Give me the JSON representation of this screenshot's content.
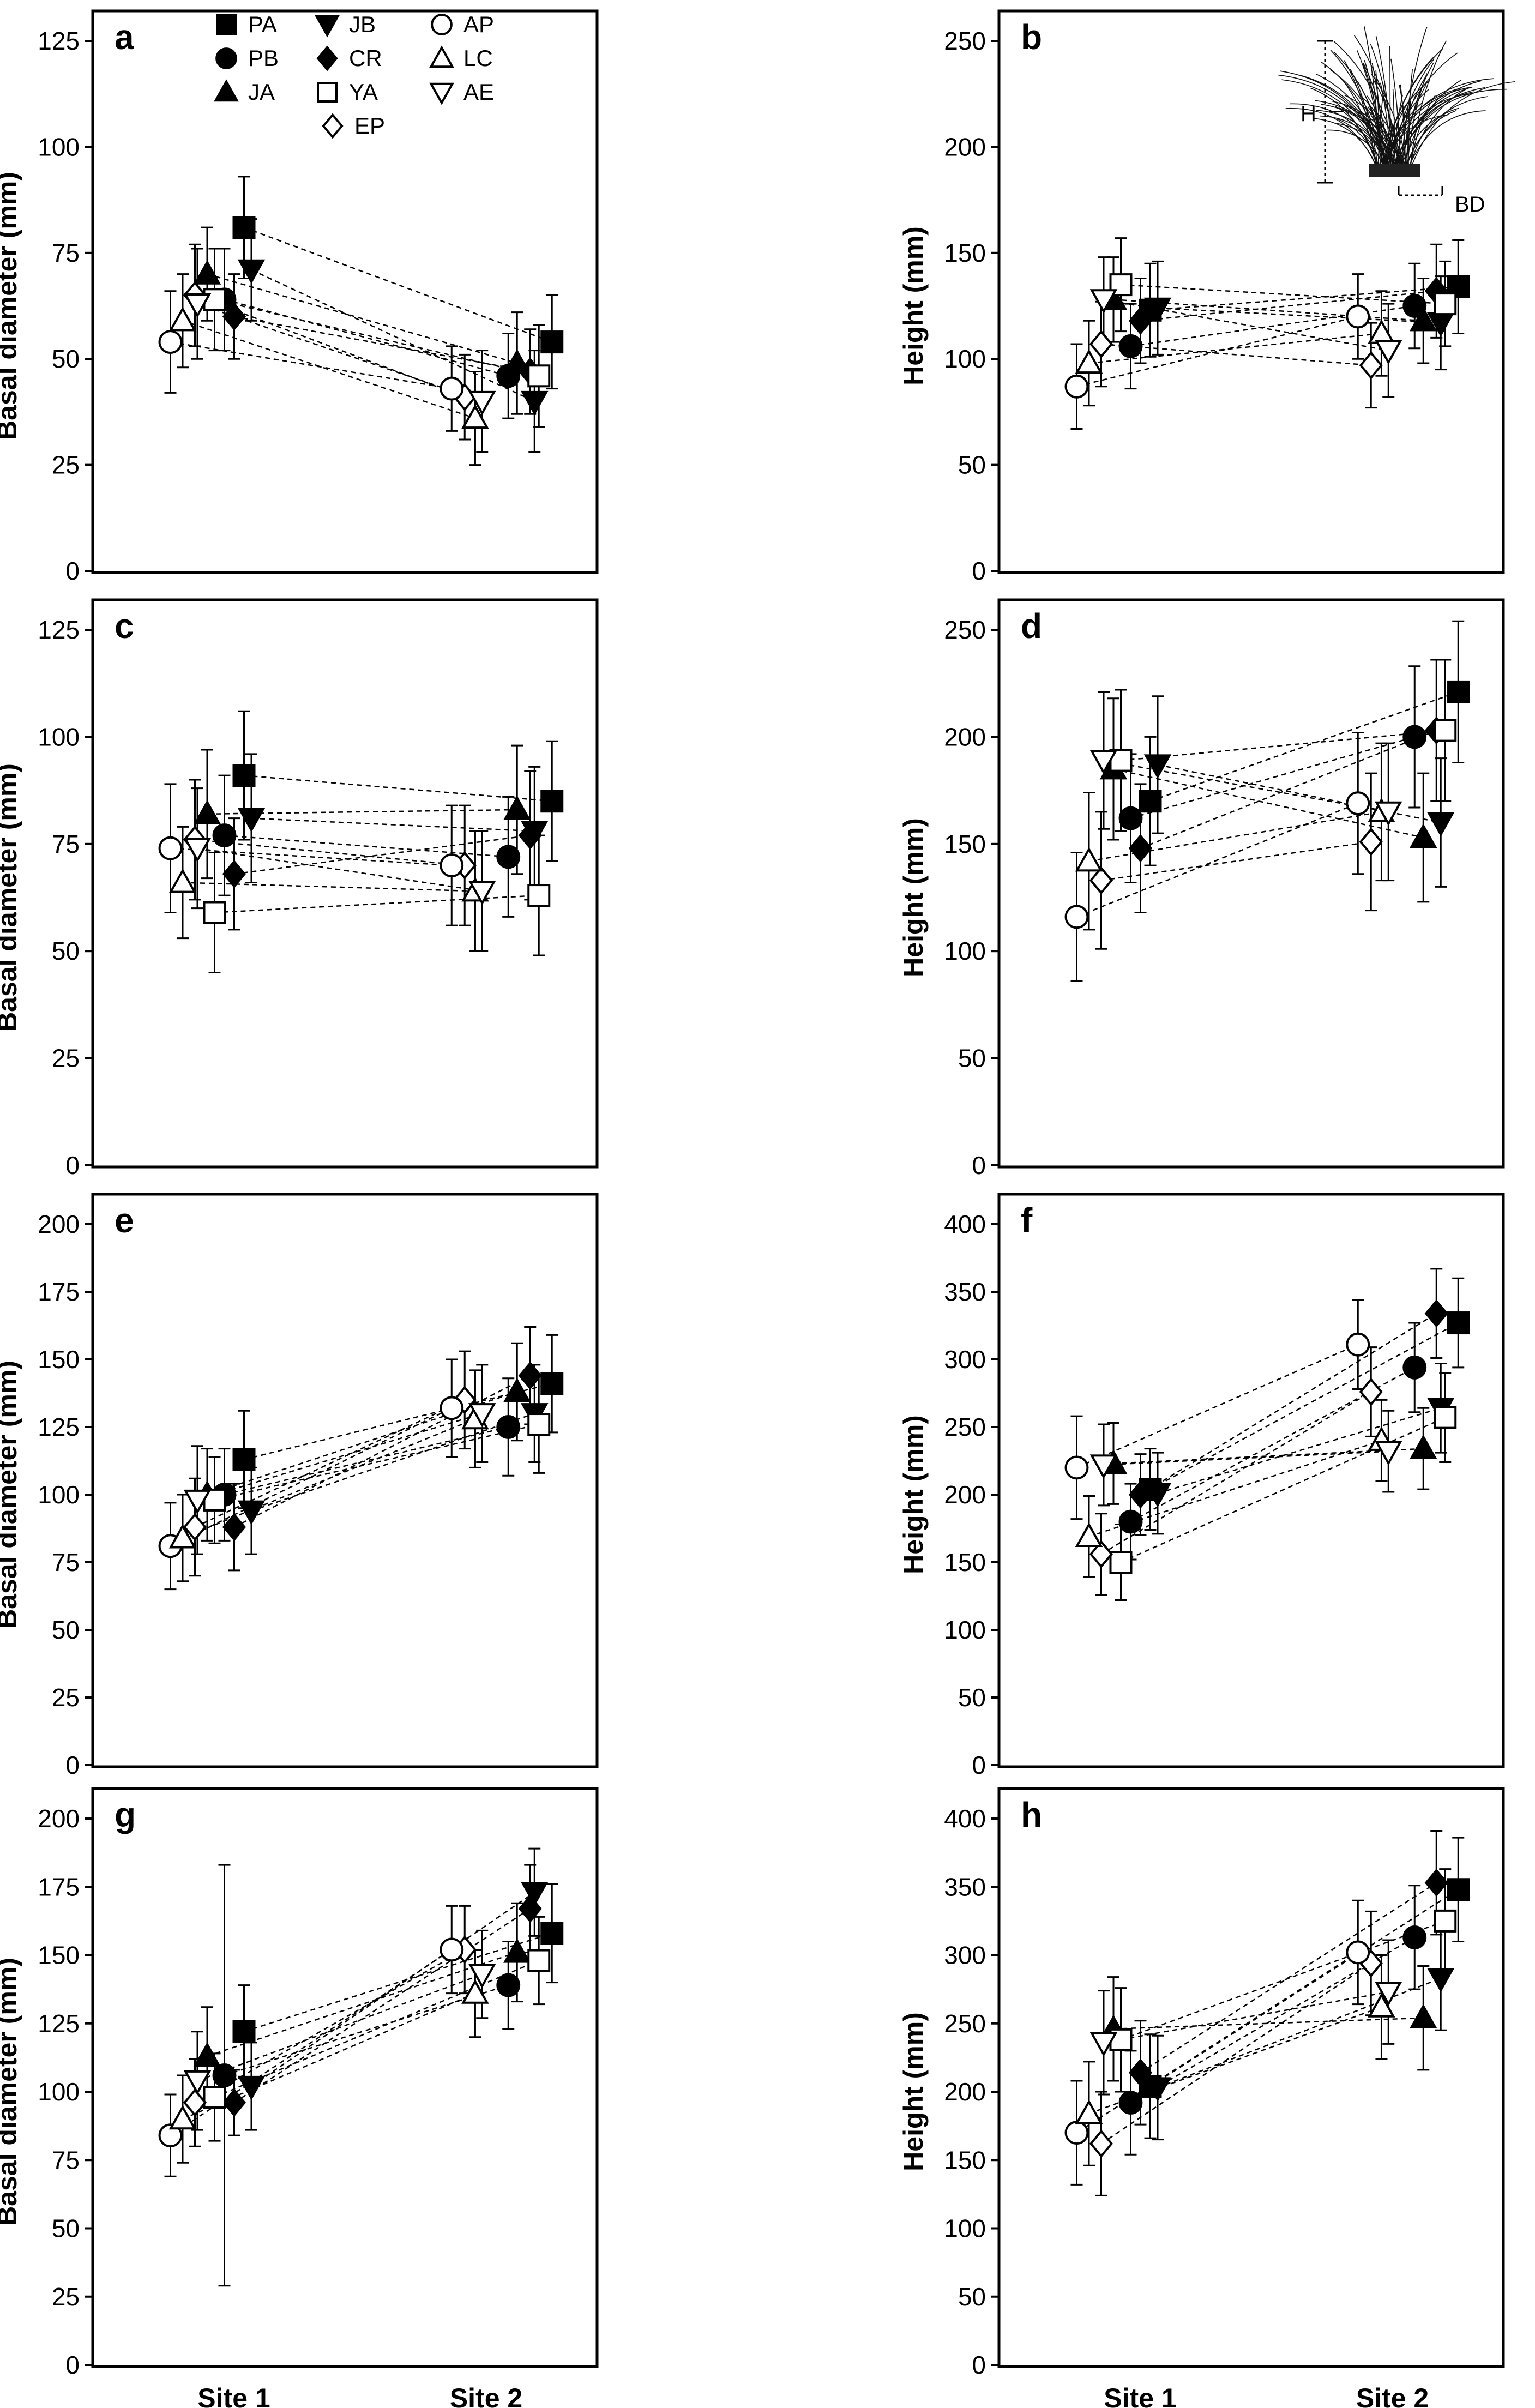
{
  "figure": {
    "categories": [
      "Site 1",
      "Site 2"
    ],
    "legend": {
      "columns": [
        [
          "PA",
          "PB",
          "JA"
        ],
        [
          "JB",
          "CR",
          "YA",
          "EP"
        ],
        [
          "AP",
          "LC",
          "AE"
        ]
      ]
    },
    "inset": {
      "height_label": "H",
      "base_label": "BD"
    }
  },
  "chart_data": [
    {
      "id": "a",
      "type": "scatter",
      "ylabel": "Basal diameter (mm)",
      "ylim": [
        0,
        125
      ],
      "yticks": [
        0,
        25,
        50,
        75,
        100,
        125
      ],
      "categories": [
        "Site 1",
        "Site 2"
      ],
      "series": [
        {
          "name": "PA",
          "values": [
            81,
            54
          ],
          "err": [
            12,
            11
          ]
        },
        {
          "name": "PB",
          "values": [
            64,
            46
          ],
          "err": [
            12,
            10
          ]
        },
        {
          "name": "JA",
          "values": [
            70,
            49
          ],
          "err": [
            11,
            12
          ]
        },
        {
          "name": "JB",
          "values": [
            71,
            40
          ],
          "err": [
            12,
            12
          ]
        },
        {
          "name": "CR",
          "values": [
            60,
            47
          ],
          "err": [
            10,
            10
          ]
        },
        {
          "name": "YA",
          "values": [
            64,
            46
          ],
          "err": [
            12,
            12
          ]
        },
        {
          "name": "EP",
          "values": [
            65,
            41
          ],
          "err": [
            12,
            10
          ]
        },
        {
          "name": "AP",
          "values": [
            54,
            43
          ],
          "err": [
            12,
            10
          ]
        },
        {
          "name": "LC",
          "values": [
            59,
            36
          ],
          "err": [
            11,
            11
          ]
        },
        {
          "name": "AE",
          "values": [
            63,
            40
          ],
          "err": [
            13,
            12
          ]
        }
      ]
    },
    {
      "id": "b",
      "type": "scatter",
      "ylabel": "Height (mm)",
      "ylim": [
        0,
        250
      ],
      "yticks": [
        0,
        50,
        100,
        150,
        200,
        250
      ],
      "categories": [
        "Site 1",
        "Site 2"
      ],
      "series": [
        {
          "name": "PA",
          "values": [
            123,
            134
          ],
          "err": [
            22,
            22
          ]
        },
        {
          "name": "PB",
          "values": [
            106,
            125
          ],
          "err": [
            20,
            20
          ]
        },
        {
          "name": "JA",
          "values": [
            128,
            118
          ],
          "err": [
            20,
            20
          ]
        },
        {
          "name": "JB",
          "values": [
            124,
            117
          ],
          "err": [
            22,
            22
          ]
        },
        {
          "name": "CR",
          "values": [
            118,
            132
          ],
          "err": [
            20,
            22
          ]
        },
        {
          "name": "YA",
          "values": [
            135,
            126
          ],
          "err": [
            22,
            20
          ]
        },
        {
          "name": "EP",
          "values": [
            107,
            97
          ],
          "err": [
            20,
            20
          ]
        },
        {
          "name": "AP",
          "values": [
            87,
            120
          ],
          "err": [
            20,
            20
          ]
        },
        {
          "name": "LC",
          "values": [
            98,
            112
          ],
          "err": [
            20,
            20
          ]
        },
        {
          "name": "AE",
          "values": [
            128,
            104
          ],
          "err": [
            20,
            22
          ]
        }
      ]
    },
    {
      "id": "c",
      "type": "scatter",
      "ylabel": "Basal diameter (mm)",
      "ylim": [
        0,
        125
      ],
      "yticks": [
        0,
        25,
        50,
        75,
        100,
        125
      ],
      "categories": [
        "Site 1",
        "Site 2"
      ],
      "series": [
        {
          "name": "PA",
          "values": [
            91,
            85
          ],
          "err": [
            15,
            14
          ]
        },
        {
          "name": "PB",
          "values": [
            77,
            72
          ],
          "err": [
            14,
            14
          ]
        },
        {
          "name": "JA",
          "values": [
            82,
            83
          ],
          "err": [
            15,
            15
          ]
        },
        {
          "name": "JB",
          "values": [
            81,
            78
          ],
          "err": [
            15,
            15
          ]
        },
        {
          "name": "CR",
          "values": [
            68,
            77
          ],
          "err": [
            13,
            15
          ]
        },
        {
          "name": "YA",
          "values": [
            59,
            63
          ],
          "err": [
            14,
            14
          ]
        },
        {
          "name": "EP",
          "values": [
            76,
            70
          ],
          "err": [
            14,
            14
          ]
        },
        {
          "name": "AP",
          "values": [
            74,
            70
          ],
          "err": [
            15,
            14
          ]
        },
        {
          "name": "LC",
          "values": [
            66,
            64
          ],
          "err": [
            13,
            14
          ]
        },
        {
          "name": "AE",
          "values": [
            74,
            64
          ],
          "err": [
            14,
            14
          ]
        }
      ]
    },
    {
      "id": "d",
      "type": "scatter",
      "ylabel": "Height (mm)",
      "ylim": [
        0,
        250
      ],
      "yticks": [
        0,
        50,
        100,
        150,
        200,
        250
      ],
      "categories": [
        "Site 1",
        "Site 2"
      ],
      "series": [
        {
          "name": "PA",
          "values": [
            170,
            221
          ],
          "err": [
            30,
            33
          ]
        },
        {
          "name": "PB",
          "values": [
            162,
            200
          ],
          "err": [
            30,
            33
          ]
        },
        {
          "name": "JA",
          "values": [
            185,
            153
          ],
          "err": [
            33,
            30
          ]
        },
        {
          "name": "JB",
          "values": [
            187,
            160
          ],
          "err": [
            32,
            30
          ]
        },
        {
          "name": "CR",
          "values": [
            148,
            203
          ],
          "err": [
            30,
            33
          ]
        },
        {
          "name": "YA",
          "values": [
            189,
            203
          ],
          "err": [
            33,
            33
          ]
        },
        {
          "name": "EP",
          "values": [
            133,
            151
          ],
          "err": [
            32,
            32
          ]
        },
        {
          "name": "AP",
          "values": [
            116,
            169
          ],
          "err": [
            30,
            33
          ]
        },
        {
          "name": "LC",
          "values": [
            142,
            165
          ],
          "err": [
            32,
            32
          ]
        },
        {
          "name": "AE",
          "values": [
            189,
            165
          ],
          "err": [
            32,
            32
          ]
        }
      ]
    },
    {
      "id": "e",
      "type": "scatter",
      "ylabel": "Basal diameter (mm)",
      "ylim": [
        0,
        200
      ],
      "yticks": [
        0,
        25,
        50,
        75,
        100,
        125,
        150,
        175,
        200
      ],
      "categories": [
        "Site 1",
        "Site 2"
      ],
      "series": [
        {
          "name": "PA",
          "values": [
            113,
            141
          ],
          "err": [
            18,
            18
          ]
        },
        {
          "name": "PB",
          "values": [
            100,
            125
          ],
          "err": [
            17,
            18
          ]
        },
        {
          "name": "JA",
          "values": [
            100,
            138
          ],
          "err": [
            17,
            18
          ]
        },
        {
          "name": "JB",
          "values": [
            94,
            130
          ],
          "err": [
            16,
            18
          ]
        },
        {
          "name": "CR",
          "values": [
            88,
            144
          ],
          "err": [
            16,
            18
          ]
        },
        {
          "name": "YA",
          "values": [
            98,
            126
          ],
          "err": [
            16,
            18
          ]
        },
        {
          "name": "EP",
          "values": [
            88,
            135
          ],
          "err": [
            18,
            18
          ]
        },
        {
          "name": "AP",
          "values": [
            81,
            132
          ],
          "err": [
            16,
            18
          ]
        },
        {
          "name": "LC",
          "values": [
            84,
            128
          ],
          "err": [
            16,
            18
          ]
        },
        {
          "name": "AE",
          "values": [
            98,
            130
          ],
          "err": [
            20,
            18
          ]
        }
      ]
    },
    {
      "id": "f",
      "type": "scatter",
      "ylabel": "Height (mm)",
      "ylim": [
        0,
        400
      ],
      "yticks": [
        0,
        50,
        100,
        150,
        200,
        250,
        300,
        350,
        400
      ],
      "categories": [
        "Site 1",
        "Site 2"
      ],
      "series": [
        {
          "name": "PA",
          "values": [
            204,
            327
          ],
          "err": [
            30,
            33
          ]
        },
        {
          "name": "PB",
          "values": [
            180,
            294
          ],
          "err": [
            28,
            33
          ]
        },
        {
          "name": "JA",
          "values": [
            223,
            234
          ],
          "err": [
            30,
            30
          ]
        },
        {
          "name": "JB",
          "values": [
            201,
            264
          ],
          "err": [
            30,
            33
          ]
        },
        {
          "name": "CR",
          "values": [
            200,
            334
          ],
          "err": [
            30,
            33
          ]
        },
        {
          "name": "YA",
          "values": [
            150,
            257
          ],
          "err": [
            28,
            33
          ]
        },
        {
          "name": "EP",
          "values": [
            156,
            276
          ],
          "err": [
            30,
            33
          ]
        },
        {
          "name": "AP",
          "values": [
            220,
            311
          ],
          "err": [
            38,
            33
          ]
        },
        {
          "name": "LC",
          "values": [
            169,
            240
          ],
          "err": [
            30,
            30
          ]
        },
        {
          "name": "AE",
          "values": [
            222,
            232
          ],
          "err": [
            30,
            30
          ]
        }
      ]
    },
    {
      "id": "g",
      "type": "scatter",
      "ylabel": "Basal diameter (mm)",
      "ylim": [
        0,
        200
      ],
      "yticks": [
        0,
        25,
        50,
        75,
        100,
        125,
        150,
        175,
        200
      ],
      "categories": [
        "Site 1",
        "Site 2"
      ],
      "series": [
        {
          "name": "PA",
          "values": [
            122,
            158
          ],
          "err": [
            17,
            18
          ]
        },
        {
          "name": "PB",
          "values": [
            106,
            139
          ],
          "err": [
            77,
            16
          ]
        },
        {
          "name": "JA",
          "values": [
            113,
            151
          ],
          "err": [
            18,
            18
          ]
        },
        {
          "name": "JB",
          "values": [
            102,
            173
          ],
          "err": [
            16,
            16
          ]
        },
        {
          "name": "CR",
          "values": [
            96,
            167
          ],
          "err": [
            12,
            16
          ]
        },
        {
          "name": "YA",
          "values": [
            98,
            148
          ],
          "err": [
            16,
            16
          ]
        },
        {
          "name": "EP",
          "values": [
            96,
            152
          ],
          "err": [
            16,
            16
          ]
        },
        {
          "name": "AP",
          "values": [
            84,
            152
          ],
          "err": [
            15,
            16
          ]
        },
        {
          "name": "LC",
          "values": [
            90,
            136
          ],
          "err": [
            16,
            16
          ]
        },
        {
          "name": "AE",
          "values": [
            104,
            143
          ],
          "err": [
            18,
            16
          ]
        }
      ]
    },
    {
      "id": "h",
      "type": "scatter",
      "ylabel": "Height (mm)",
      "ylim": [
        0,
        400
      ],
      "yticks": [
        0,
        50,
        100,
        150,
        200,
        250,
        300,
        350,
        400
      ],
      "categories": [
        "Site 1",
        "Site 2"
      ],
      "series": [
        {
          "name": "PA",
          "values": [
            204,
            348
          ],
          "err": [
            38,
            38
          ]
        },
        {
          "name": "PB",
          "values": [
            192,
            313
          ],
          "err": [
            38,
            38
          ]
        },
        {
          "name": "JA",
          "values": [
            246,
            254
          ],
          "err": [
            38,
            38
          ]
        },
        {
          "name": "JB",
          "values": [
            203,
            283
          ],
          "err": [
            38,
            38
          ]
        },
        {
          "name": "CR",
          "values": [
            214,
            353
          ],
          "err": [
            38,
            38
          ]
        },
        {
          "name": "YA",
          "values": [
            238,
            325
          ],
          "err": [
            38,
            38
          ]
        },
        {
          "name": "EP",
          "values": [
            162,
            294
          ],
          "err": [
            38,
            38
          ]
        },
        {
          "name": "AP",
          "values": [
            170,
            302
          ],
          "err": [
            38,
            38
          ]
        },
        {
          "name": "LC",
          "values": [
            184,
            262
          ],
          "err": [
            38,
            38
          ]
        },
        {
          "name": "AE",
          "values": [
            236,
            273
          ],
          "err": [
            38,
            38
          ]
        }
      ]
    }
  ]
}
